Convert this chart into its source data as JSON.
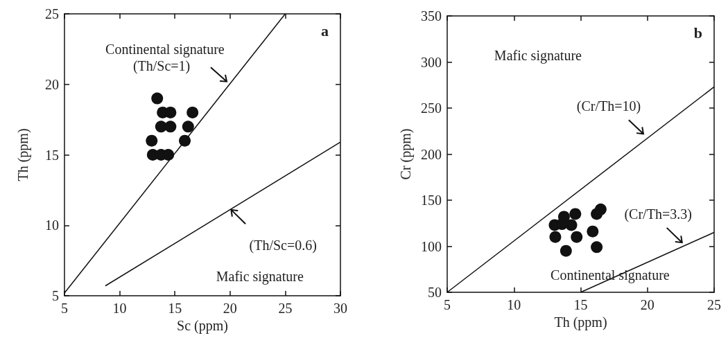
{
  "chart_data": [
    {
      "type": "scatter",
      "title": "a",
      "xlabel": "Sc (ppm)",
      "ylabel": "Th (ppm)",
      "xlim": [
        5,
        30
      ],
      "xticks": [
        5,
        10,
        15,
        20,
        25,
        30
      ],
      "ylim": [
        5,
        25
      ],
      "yticks": [
        5,
        10,
        15,
        20,
        25
      ],
      "grid": false,
      "series": [
        {
          "color": "#111111",
          "marker": "circle",
          "x": [
            13.4,
            13.9,
            14.6,
            16.6,
            13.75,
            14.6,
            16.2,
            12.9,
            15.9,
            13.0,
            13.75,
            14.4
          ],
          "values": [
            19,
            18,
            18,
            18,
            17,
            17,
            17,
            16,
            16,
            15,
            15,
            15
          ]
        },
        {
          "type": "line",
          "color": "#111111",
          "marker": "none",
          "x": [
            5,
            25
          ],
          "values": [
            5.2,
            25
          ]
        },
        {
          "type": "line",
          "color": "#111111",
          "marker": "none",
          "x": [
            8.7,
            30
          ],
          "values": [
            5.7,
            15.9
          ]
        }
      ],
      "annotations": [
        "Continental signature",
        "(Th/Sc=1)",
        "(Th/Sc=0.6)",
        "Mafic signature"
      ]
    },
    {
      "type": "scatter",
      "title": "b",
      "xlabel": "Th (ppm)",
      "ylabel": "Cr (ppm)",
      "xlim": [
        5,
        25
      ],
      "xticks": [
        5,
        10,
        15,
        20,
        25
      ],
      "ylim": [
        50,
        350
      ],
      "yticks": [
        50,
        100,
        150,
        200,
        250,
        300,
        350
      ],
      "grid": false,
      "series": [
        {
          "color": "#111111",
          "marker": "circle",
          "x": [
            13.05,
            13.75,
            13.6,
            14.3,
            14.6,
            13.1,
            14.7,
            13.9,
            15.9,
            16.2,
            16.2,
            16.5
          ],
          "values": [
            123,
            132,
            124,
            123,
            135,
            110,
            110,
            95,
            116,
            99,
            135,
            140
          ]
        },
        {
          "type": "line",
          "color": "#111111",
          "marker": "none",
          "x": [
            5,
            25
          ],
          "values": [
            50,
            273
          ]
        },
        {
          "type": "line",
          "color": "#111111",
          "marker": "none",
          "x": [
            15,
            25
          ],
          "values": [
            50,
            115
          ]
        }
      ],
      "annotations": [
        "Mafic signature",
        "(Cr/Th=10)",
        "(Cr/Th=3.3)",
        "Continental signature"
      ]
    }
  ]
}
